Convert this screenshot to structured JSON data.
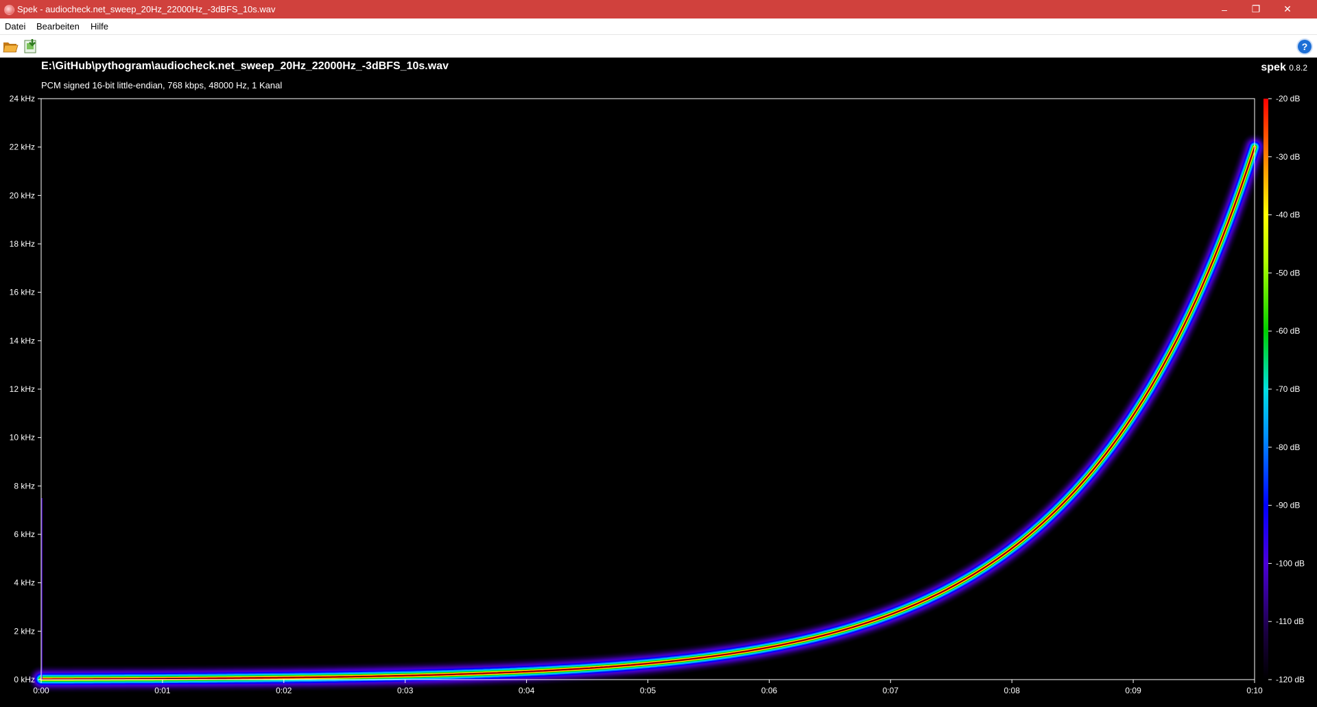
{
  "window": {
    "title": "Spek - audiocheck.net_sweep_20Hz_22000Hz_-3dBFS_10s.wav",
    "controls": {
      "minimize": "–",
      "maximize": "❐",
      "close": "✕"
    }
  },
  "menu": {
    "items": [
      "Datei",
      "Bearbeiten",
      "Hilfe"
    ]
  },
  "toolbar": {
    "open_icon": "folder-open-icon",
    "save_icon": "save-image-icon",
    "help_icon": "help-icon",
    "help_glyph": "?"
  },
  "header": {
    "file_path": "E:\\GitHub\\pythogram\\audiocheck.net_sweep_20Hz_22000Hz_-3dBFS_10s.wav",
    "file_info": "PCM signed 16-bit little-endian, 768 kbps, 48000 Hz, 1 Kanal",
    "app_name": "spek",
    "app_version": "0.8.2"
  },
  "colors": {
    "titlebar": "#d0413d",
    "background": "#000000",
    "scale": [
      "#000000",
      "#1a0033",
      "#3a00a8",
      "#0000ff",
      "#0090ff",
      "#00e0e0",
      "#00d000",
      "#ffff00",
      "#ff8000",
      "#ff0000"
    ]
  },
  "chart_data": {
    "type": "heatmap",
    "title": "",
    "xlabel": "",
    "ylabel": "",
    "x_ticks": [
      "0:00",
      "0:01",
      "0:02",
      "0:03",
      "0:04",
      "0:05",
      "0:06",
      "0:07",
      "0:08",
      "0:09",
      "0:10"
    ],
    "y_ticks": [
      "0 kHz",
      "2 kHz",
      "4 kHz",
      "6 kHz",
      "8 kHz",
      "10 kHz",
      "12 kHz",
      "14 kHz",
      "16 kHz",
      "18 kHz",
      "20 kHz",
      "22 kHz",
      "24 kHz"
    ],
    "xlim": [
      0,
      10
    ],
    "ylim_khz": [
      0,
      24
    ],
    "colorbar_ticks": [
      "-20 dB",
      "-30 dB",
      "-40 dB",
      "-50 dB",
      "-60 dB",
      "-70 dB",
      "-80 dB",
      "-90 dB",
      "-100 dB",
      "-110 dB",
      "-120 dB"
    ],
    "colorbar_range_db": [
      -120,
      -20
    ],
    "sweep": {
      "start_hz": 20,
      "end_hz": 22000,
      "duration_s": 10,
      "kind": "logarithmic"
    }
  }
}
